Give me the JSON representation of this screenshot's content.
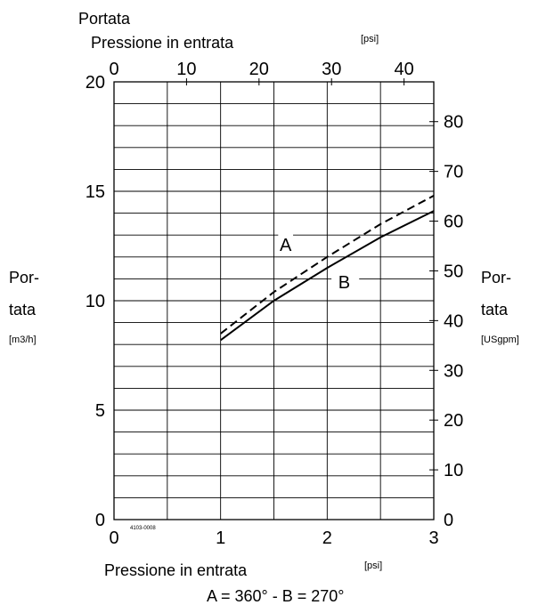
{
  "chart_data": {
    "type": "line",
    "title": "Portata",
    "code": "4103-0008",
    "footnote": "A = 360° - B = 270°",
    "x_bottom": {
      "label": "Pressione in entrata",
      "unit": "[psi]",
      "range": [
        0,
        3
      ],
      "ticks": [
        "0",
        "1",
        "2",
        "3"
      ]
    },
    "x_top": {
      "label": "Pressione in entrata",
      "unit": "[psi]",
      "range": [
        0,
        44.1
      ],
      "ticks": [
        "0",
        "10",
        "20",
        "30",
        "40"
      ]
    },
    "y_left": {
      "label_line1": "Por-",
      "label_line2": "tata",
      "unit": "[m3/h]",
      "range": [
        0,
        20
      ],
      "ticks": [
        "0",
        "5",
        "10",
        "15",
        "20"
      ]
    },
    "y_right": {
      "label_line1": "Por-",
      "label_line2": "tata",
      "unit": "[USgpm]",
      "range": [
        0,
        88
      ],
      "ticks": [
        "0",
        "10",
        "20",
        "30",
        "40",
        "50",
        "60",
        "70",
        "80"
      ]
    },
    "grid": true,
    "series": [
      {
        "name": "A",
        "style": "dashed",
        "x": [
          1.0,
          1.5,
          2.0,
          2.5,
          3.0
        ],
        "y": [
          8.5,
          10.4,
          12.0,
          13.5,
          14.8
        ]
      },
      {
        "name": "B",
        "style": "solid",
        "x": [
          1.0,
          1.5,
          2.0,
          2.5,
          3.0
        ],
        "y": [
          8.2,
          10.0,
          11.5,
          12.9,
          14.1
        ]
      }
    ]
  }
}
